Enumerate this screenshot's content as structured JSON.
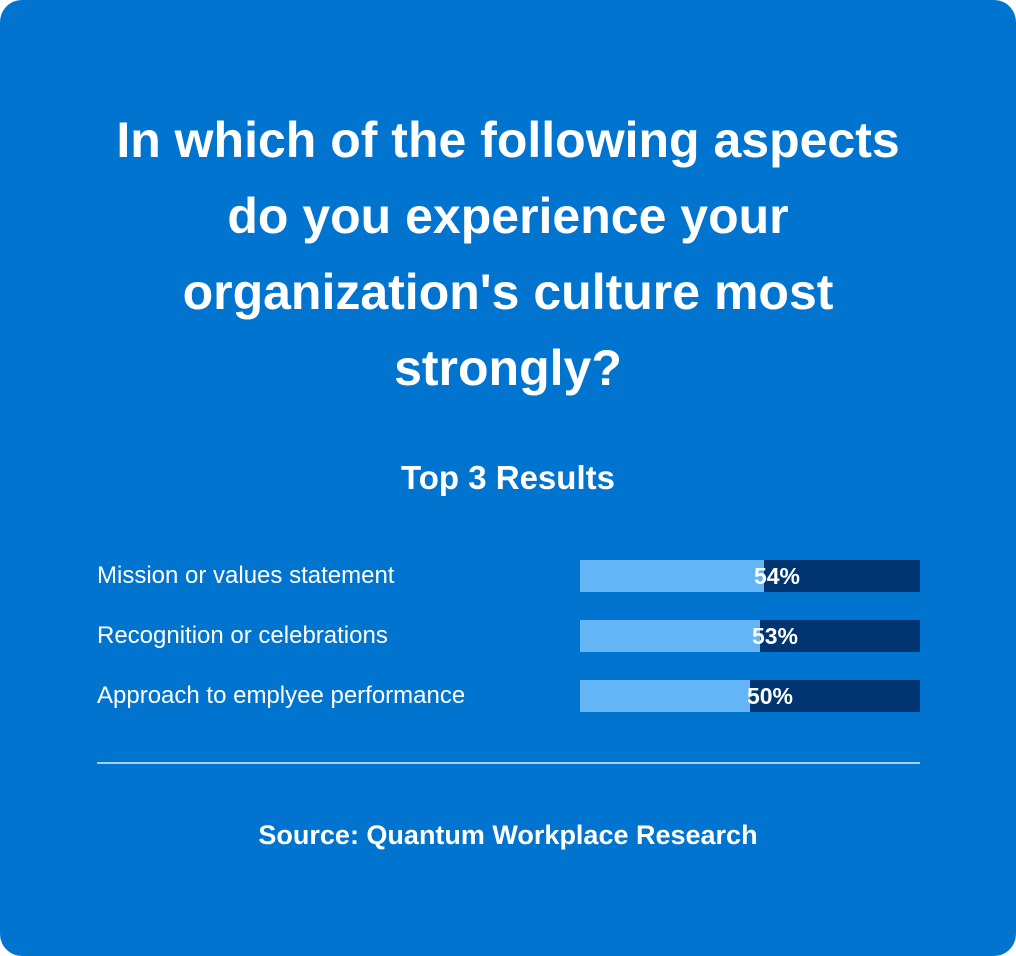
{
  "colors": {
    "background": "#0174cf",
    "bar_fill": "#64b5f6",
    "bar_track": "#003571",
    "divider": "#a9cdf1",
    "text": "#ffffff"
  },
  "chart_data": {
    "type": "bar",
    "orientation": "horizontal",
    "title": "In which of the following aspects do you experience your organization's culture most strongly?",
    "subtitle": "Top 3 Results",
    "categories": [
      "Mission or values statement",
      "Recognition or celebrations",
      "Approach to emplyee performance"
    ],
    "values": [
      54,
      53,
      50
    ],
    "value_labels": [
      "54%",
      "53%",
      "50%"
    ],
    "xlim": [
      0,
      100
    ],
    "grid": false,
    "source": "Source: Quantum Workplace Research"
  }
}
